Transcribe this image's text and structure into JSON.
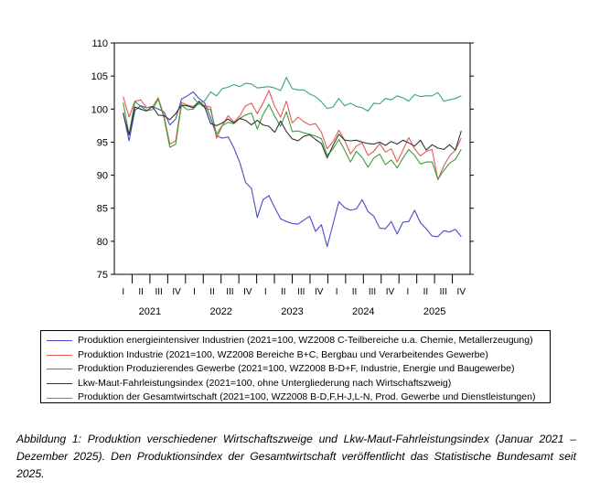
{
  "chart_data": {
    "type": "line",
    "ylim": [
      75,
      110
    ],
    "yticks": [
      75,
      80,
      85,
      90,
      95,
      100,
      105,
      110
    ],
    "quarter_labels": [
      "I",
      "II",
      "III",
      "IV",
      "I",
      "II",
      "III",
      "IV",
      "I",
      "II",
      "III",
      "IV",
      "I",
      "II",
      "III",
      "IV",
      "I",
      "II",
      "III",
      "IV"
    ],
    "year_labels": [
      "2021",
      "2022",
      "2023",
      "2024",
      "2025"
    ],
    "grid": false,
    "legend_position": "bottom",
    "series": [
      {
        "name": "Produktion energieintensiver Industrien (2021=100, WZ2008 C-Teilbereiche u.a. Chemie, Metallerzeugung)",
        "color": "#4a4acb",
        "values": [
          99.5,
          95.2,
          99.8,
          100.5,
          100.2,
          100.4,
          100.0,
          99.6,
          97.6,
          98.5,
          101.5,
          102.0,
          102.6,
          101.6,
          100.9,
          98.7,
          96.0,
          95.6,
          95.8,
          94.1,
          91.9,
          88.9,
          88.0,
          83.6,
          86.3,
          86.9,
          85.1,
          83.4,
          83.0,
          82.7,
          82.6,
          83.2,
          83.8,
          81.5,
          82.5,
          79.2,
          82.6,
          86.0,
          85.1,
          84.7,
          84.9,
          86.3,
          84.5,
          83.8,
          82.0,
          81.9,
          83.0,
          81.1,
          82.9,
          83.0,
          84.7,
          82.8,
          81.9,
          80.8,
          80.7,
          81.6,
          81.4,
          81.8,
          80.7
        ]
      },
      {
        "name": "Produktion Industrie (2021=100, WZ2008 Bereiche B+C, Bergbau und Verarbeitendes Gewerbe)",
        "color": "#e05a52",
        "values": [
          101.9,
          98.8,
          101.2,
          101.4,
          100.2,
          100.3,
          101.7,
          99.0,
          94.7,
          95.2,
          101.0,
          100.6,
          100.4,
          101.0,
          100.5,
          100.3,
          95.6,
          97.5,
          99.0,
          98.0,
          99.0,
          100.5,
          100.9,
          99.3,
          100.9,
          102.8,
          100.4,
          98.8,
          101.2,
          97.9,
          98.8,
          98.1,
          97.6,
          97.8,
          96.5,
          94.0,
          95.1,
          96.8,
          95.3,
          93.2,
          94.4,
          94.9,
          93.0,
          93.6,
          94.8,
          93.5,
          94.0,
          92.0,
          93.8,
          95.7,
          94.0,
          92.9,
          93.6,
          93.9,
          89.3,
          91.4,
          92.9,
          93.8,
          95.6
        ]
      },
      {
        "name": "Produktion Produzierendes Gewerbe (2021=100, WZ2008 B-D+F, Industrie, Energie und Baugewerbe)",
        "color": "#3a9e3a",
        "values": [
          101.0,
          96.1,
          101.2,
          100.4,
          99.8,
          99.9,
          101.5,
          98.7,
          94.2,
          94.7,
          100.6,
          99.9,
          100.0,
          100.9,
          100.2,
          99.9,
          96.2,
          97.5,
          98.0,
          97.8,
          98.6,
          99.1,
          99.4,
          97.0,
          99.2,
          100.7,
          98.9,
          97.4,
          99.6,
          96.6,
          96.7,
          96.4,
          96.2,
          95.9,
          95.5,
          93.0,
          94.0,
          95.4,
          93.8,
          92.0,
          93.6,
          92.7,
          91.2,
          92.6,
          93.2,
          91.6,
          92.3,
          91.1,
          92.6,
          93.9,
          93.0,
          91.7,
          92.0,
          92.0,
          89.4,
          90.7,
          91.8,
          92.4,
          93.9
        ]
      },
      {
        "name": "Lkw-Maut-Fahrleistungsindex (2021=100, ohne Untergliederung nach Wirtschaftszweig)",
        "color": "#333333",
        "values": [
          99.3,
          96.1,
          100.3,
          100.0,
          99.7,
          100.4,
          99.1,
          99.0,
          98.4,
          99.3,
          100.6,
          100.5,
          100.2,
          101.2,
          100.3,
          97.8,
          97.5,
          97.9,
          98.5,
          97.9,
          98.6,
          98.3,
          97.6,
          98.3,
          97.6,
          97.4,
          96.5,
          98.2,
          96.6,
          95.5,
          95.2,
          95.9,
          96.1,
          95.4,
          94.8,
          92.6,
          94.5,
          96.2,
          95.3,
          95.2,
          95.3,
          95.0,
          94.8,
          94.7,
          95.0,
          94.5,
          95.1,
          94.7,
          95.3,
          94.9,
          94.4,
          95.3,
          93.8,
          94.6,
          94.1,
          93.9,
          94.6,
          93.8,
          96.7
        ]
      },
      {
        "name": "Produktion der Gesamtwirtschaft (2021=100, WZ2008 B-D,F,H-J,L-N, Prod. Gewerbe und Dienstleistungen)",
        "color": "#3aa37a",
        "values": [
          null,
          null,
          null,
          null,
          null,
          null,
          null,
          null,
          null,
          null,
          null,
          null,
          101.8,
          100.7,
          101.3,
          102.6,
          102.0,
          103.1,
          103.3,
          103.7,
          103.4,
          103.9,
          103.8,
          103.2,
          103.3,
          103.4,
          103.2,
          102.8,
          104.8,
          103.1,
          102.9,
          102.9,
          102.3,
          101.9,
          101.1,
          100.1,
          100.3,
          101.6,
          100.5,
          100.9,
          100.4,
          100.2,
          99.7,
          100.9,
          100.8,
          101.6,
          101.4,
          102.0,
          101.7,
          101.2,
          102.2,
          101.9,
          102.0,
          102.0,
          102.5,
          101.2,
          101.4,
          101.6,
          102.0
        ]
      }
    ]
  },
  "caption": "Abbildung 1: Produktion verschiedener Wirtschaftszweige und Lkw-Maut-Fahrleistungsindex (Januar 2021 – Dezember 2025). Den Produktionsindex der Gesamtwirtschaft veröffentlicht das Statistische Bundesamt seit 2025."
}
